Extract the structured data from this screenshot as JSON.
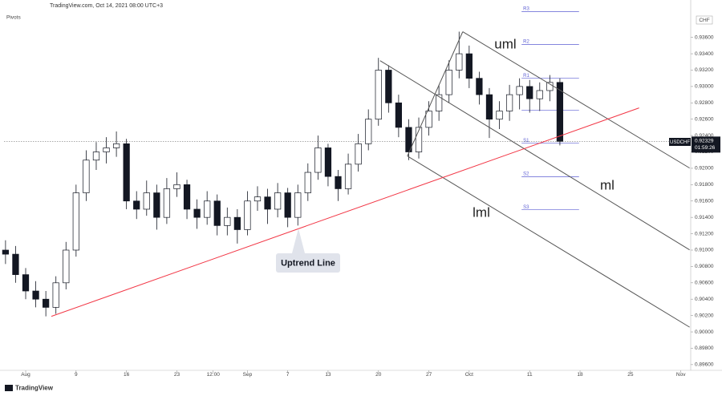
{
  "chart_data": {
    "type": "candlestick",
    "title": "TradingView.com, Oct 14, 2021 08:00 UTC+3",
    "indicator": "Pivots",
    "currency": "CHF",
    "symbol": "USDCHF",
    "last_price": 0.92329,
    "last_price_label": "0.92329",
    "countdown": "01:59:26",
    "logo": "TradingView",
    "x": [
      -2,
      -1,
      0,
      1,
      2,
      3,
      4,
      5,
      6,
      7,
      8,
      9,
      10,
      11,
      12,
      13,
      14,
      15,
      16,
      17,
      18,
      19,
      20,
      21,
      22,
      23,
      24,
      25,
      26,
      27,
      28,
      29,
      30,
      31,
      32,
      33,
      34,
      35,
      36,
      37,
      38,
      39,
      40,
      41,
      42,
      43,
      44,
      45,
      46,
      47,
      48,
      49,
      50,
      51,
      52,
      53
    ],
    "open": [
      0.91,
      0.9095,
      0.907,
      0.905,
      0.904,
      0.903,
      0.906,
      0.91,
      0.917,
      0.921,
      0.922,
      0.9225,
      0.923,
      0.916,
      0.915,
      0.917,
      0.914,
      0.9175,
      0.918,
      0.915,
      0.914,
      0.916,
      0.913,
      0.914,
      0.9125,
      0.916,
      0.9165,
      0.915,
      0.917,
      0.914,
      0.917,
      0.9195,
      0.9225,
      0.919,
      0.9175,
      0.9205,
      0.923,
      0.926,
      0.932,
      0.928,
      0.925,
      0.922,
      0.925,
      0.927,
      0.929,
      0.932,
      0.934,
      0.931,
      0.929,
      0.926,
      0.927,
      0.929,
      0.93,
      0.9285,
      0.9295,
      0.9305
    ],
    "high": [
      0.9112,
      0.9105,
      0.9078,
      0.9062,
      0.905,
      0.9068,
      0.911,
      0.918,
      0.9222,
      0.9232,
      0.9238,
      0.9245,
      0.9236,
      0.9172,
      0.9185,
      0.918,
      0.9188,
      0.9195,
      0.9186,
      0.9162,
      0.9172,
      0.9168,
      0.9152,
      0.915,
      0.9172,
      0.9178,
      0.9175,
      0.9182,
      0.9176,
      0.918,
      0.9206,
      0.924,
      0.923,
      0.9198,
      0.9218,
      0.9242,
      0.9272,
      0.9335,
      0.9326,
      0.929,
      0.926,
      0.9262,
      0.9282,
      0.9302,
      0.9332,
      0.9367,
      0.935,
      0.9318,
      0.9298,
      0.9282,
      0.9302,
      0.931,
      0.9308,
      0.9305,
      0.9314,
      0.931
    ],
    "low": [
      0.9083,
      0.906,
      0.904,
      0.903,
      0.9019,
      0.9022,
      0.9052,
      0.9092,
      0.916,
      0.9198,
      0.9206,
      0.9214,
      0.915,
      0.9138,
      0.9142,
      0.9125,
      0.9132,
      0.9165,
      0.9138,
      0.9126,
      0.9131,
      0.9118,
      0.9118,
      0.9108,
      0.9118,
      0.9148,
      0.9132,
      0.914,
      0.9128,
      0.913,
      0.916,
      0.9186,
      0.9178,
      0.916,
      0.9168,
      0.9196,
      0.9222,
      0.9252,
      0.9268,
      0.9238,
      0.921,
      0.9212,
      0.924,
      0.9258,
      0.928,
      0.931,
      0.9298,
      0.9278,
      0.9237,
      0.9248,
      0.9258,
      0.9272,
      0.9268,
      0.927,
      0.9282,
      0.9228
    ],
    "close": [
      0.9095,
      0.907,
      0.905,
      0.904,
      0.903,
      0.906,
      0.91,
      0.917,
      0.921,
      0.922,
      0.9225,
      0.923,
      0.916,
      0.915,
      0.917,
      0.914,
      0.9175,
      0.918,
      0.915,
      0.914,
      0.916,
      0.913,
      0.914,
      0.9125,
      0.916,
      0.9165,
      0.915,
      0.917,
      0.914,
      0.917,
      0.9195,
      0.9225,
      0.919,
      0.9175,
      0.9205,
      0.923,
      0.926,
      0.932,
      0.928,
      0.925,
      0.922,
      0.925,
      0.927,
      0.929,
      0.932,
      0.934,
      0.931,
      0.929,
      0.926,
      0.927,
      0.929,
      0.93,
      0.9285,
      0.9295,
      0.9305,
      0.92329
    ],
    "xlim": [
      -2.15,
      65.9
    ],
    "ylim": [
      0.8953,
      0.9392
    ],
    "xticks": [
      {
        "value": 0,
        "label": "Aug"
      },
      {
        "value": 5,
        "label": "9"
      },
      {
        "value": 10,
        "label": "16"
      },
      {
        "value": 15,
        "label": "23"
      },
      {
        "value": 18.6,
        "label": "12:00"
      },
      {
        "value": 22,
        "label": "Sep"
      },
      {
        "value": 26,
        "label": "7"
      },
      {
        "value": 30,
        "label": "13"
      },
      {
        "value": 35,
        "label": "20"
      },
      {
        "value": 40,
        "label": "27"
      },
      {
        "value": 44,
        "label": "Oct"
      },
      {
        "value": 50,
        "label": "11"
      },
      {
        "value": 55,
        "label": "18"
      },
      {
        "value": 60,
        "label": "25"
      },
      {
        "value": 65,
        "label": "Nov"
      }
    ],
    "yticks": [
      {
        "value": 0.936,
        "label": "0.93600"
      },
      {
        "value": 0.934,
        "label": "0.93400"
      },
      {
        "value": 0.932,
        "label": "0.93200"
      },
      {
        "value": 0.93,
        "label": "0.93000"
      },
      {
        "value": 0.928,
        "label": "0.92800"
      },
      {
        "value": 0.926,
        "label": "0.92600"
      },
      {
        "value": 0.924,
        "label": "0.92400"
      },
      {
        "value": 0.922,
        "label": "0.92200"
      },
      {
        "value": 0.92,
        "label": "0.92000"
      },
      {
        "value": 0.918,
        "label": "0.91800"
      },
      {
        "value": 0.916,
        "label": "0.91600"
      },
      {
        "value": 0.914,
        "label": "0.91400"
      },
      {
        "value": 0.912,
        "label": "0.91200"
      },
      {
        "value": 0.91,
        "label": "0.91000"
      },
      {
        "value": 0.908,
        "label": "0.90800"
      },
      {
        "value": 0.906,
        "label": "0.90600"
      },
      {
        "value": 0.904,
        "label": "0.90400"
      },
      {
        "value": 0.902,
        "label": "0.90200"
      },
      {
        "value": 0.9,
        "label": "0.90000"
      },
      {
        "value": 0.898,
        "label": "0.89800"
      },
      {
        "value": 0.896,
        "label": "0.89600"
      }
    ],
    "pivot_x": [
      49.2,
      54.9
    ],
    "pivots": [
      {
        "label": "R3",
        "value": 0.93914
      },
      {
        "label": "R2",
        "value": 0.93512
      },
      {
        "label": "R1",
        "value": 0.931
      },
      {
        "value": 0.92708
      },
      {
        "label": "S1",
        "value": 0.92306
      },
      {
        "label": "S2",
        "value": 0.91895
      },
      {
        "label": "S3",
        "value": 0.91493
      }
    ],
    "lines": [
      {
        "name": "uml",
        "color": "#555555",
        "x": [
          43.36,
          65.87
        ],
        "y": [
          0.93669,
          0.92003
        ]
      },
      {
        "name": "ml",
        "color": "#555555",
        "x": [
          35.16,
          65.87
        ],
        "y": [
          0.93316,
          0.91003
        ]
      },
      {
        "name": "lml",
        "color": "#555555",
        "x": [
          37.87,
          65.87
        ],
        "y": [
          0.9215,
          0.90058
        ]
      },
      {
        "color": "#555555",
        "x": [
          37.87,
          43.36
        ],
        "y": [
          0.9215,
          0.93669
        ]
      },
      {
        "name": "Uptrend Line",
        "color": "#f23645",
        "x": [
          2.55,
          60.86
        ],
        "y": [
          0.9019,
          0.92738
        ]
      }
    ],
    "up_color": "#ffffff",
    "down_color": "#131722"
  }
}
